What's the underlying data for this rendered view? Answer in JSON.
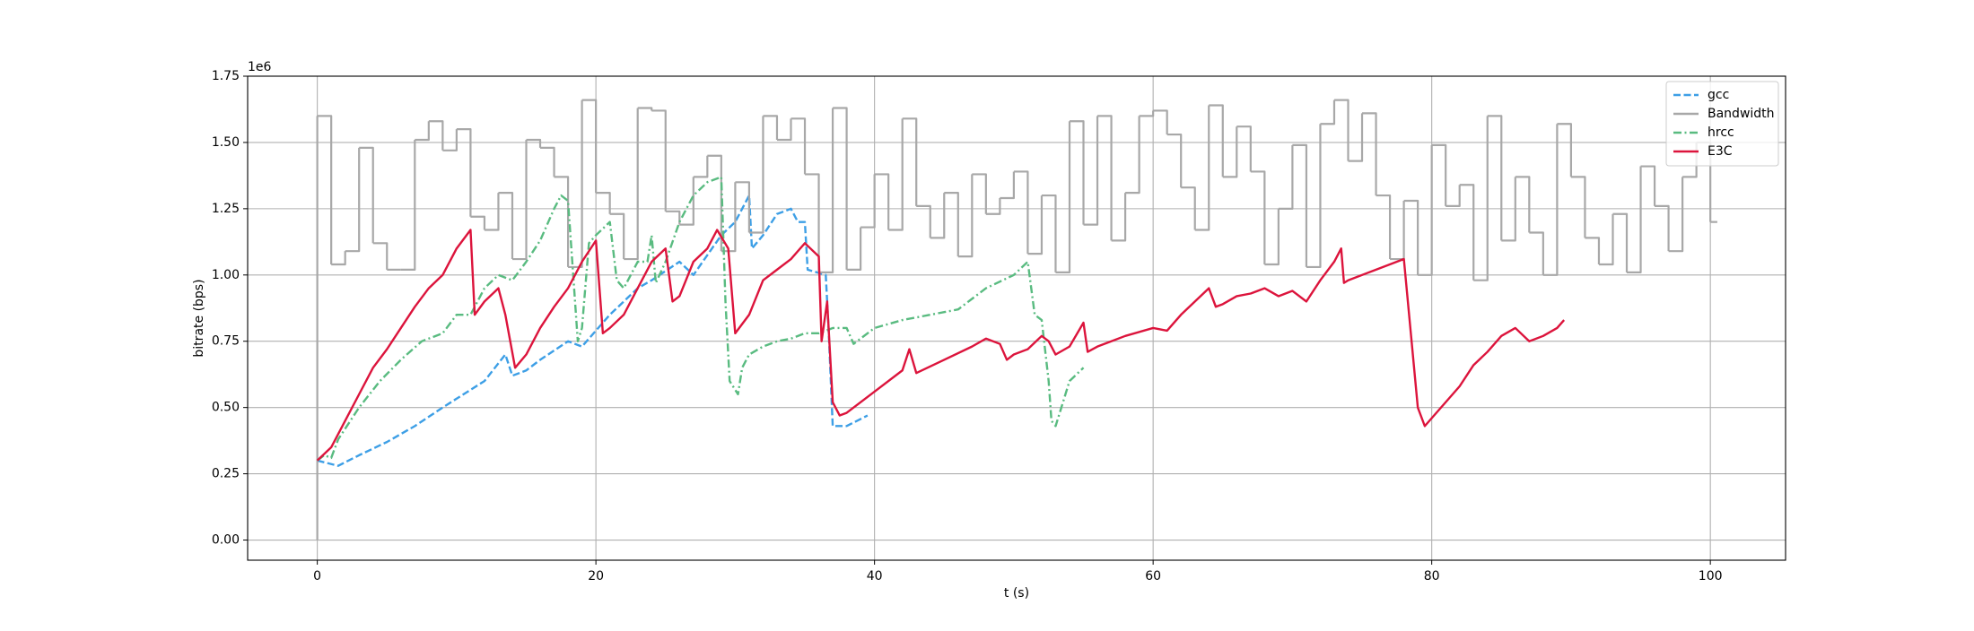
{
  "chart_data": {
    "type": "line",
    "xlabel": "t (s)",
    "ylabel": "bitrate (bps)",
    "y_offset_label": "1e6",
    "xlim": [
      -5,
      105.4
    ],
    "xticks": [
      0,
      20,
      40,
      60,
      80,
      100
    ],
    "ylim": [
      -76000,
      1750000
    ],
    "yticks": [
      {
        "value": 0,
        "label": "0.00"
      },
      {
        "value": 250000,
        "label": "0.25"
      },
      {
        "value": 500000,
        "label": "0.50"
      },
      {
        "value": 750000,
        "label": "0.75"
      },
      {
        "value": 1000000,
        "label": "1.00"
      },
      {
        "value": 1250000,
        "label": "1.25"
      },
      {
        "value": 1500000,
        "label": "1.50"
      },
      {
        "value": 1750000,
        "label": "1.75"
      }
    ],
    "grid": true,
    "legend": "upper right",
    "series": [
      {
        "name": "gcc",
        "color": "#3d9fe6",
        "dash": "dashed",
        "x": [
          0,
          1.5,
          3,
          5,
          7,
          9,
          10.5,
          12,
          13.5,
          14,
          15,
          16,
          18,
          19,
          21,
          23,
          24,
          26,
          27,
          29,
          30,
          31,
          31.2,
          32,
          33,
          34,
          34.5,
          35,
          35.2,
          36.5,
          36.7,
          37,
          38,
          39.5
        ],
        "values": [
          300000.0,
          280000.0,
          320000.0,
          370000.0,
          430000.0,
          500000.0,
          550000.0,
          600000.0,
          700000.0,
          620000.0,
          640000.0,
          680000.0,
          750000.0,
          730000.0,
          850000.0,
          950000.0,
          980000.0,
          1050000.0,
          1000000.0,
          1150000.0,
          1200000.0,
          1300000.0,
          1100000.0,
          1150000.0,
          1230000.0,
          1250000.0,
          1200000.0,
          1200000.0,
          1020000.0,
          1000000.0,
          800000.0,
          430000.0,
          430000.0,
          470000.0
        ]
      },
      {
        "name": "Bandwidth",
        "color": "#a8a8a8",
        "dash": "solid",
        "step": "post",
        "x": [
          0,
          0,
          1,
          2,
          3,
          4,
          5,
          6,
          7,
          8,
          9,
          10,
          11,
          12,
          13,
          14,
          15,
          16,
          17,
          18,
          19,
          20,
          21,
          22,
          23,
          24,
          25,
          26,
          27,
          28,
          29,
          30,
          31,
          32,
          33,
          34,
          35,
          36,
          37,
          38,
          39,
          40,
          41,
          42,
          43,
          44,
          45,
          46,
          47,
          48,
          49,
          50,
          51,
          52,
          53,
          54,
          55,
          56,
          57,
          58,
          59,
          60,
          61,
          62,
          63,
          64,
          65,
          66,
          67,
          68,
          69,
          70,
          71,
          72,
          73,
          74,
          75,
          76,
          77,
          78,
          79,
          80,
          81,
          82,
          83,
          84,
          85,
          86,
          87,
          88,
          89,
          90,
          91,
          92,
          93,
          94,
          95,
          96,
          97,
          98,
          99,
          100,
          100.5
        ],
        "values": [
          0,
          1600000.0,
          1040000.0,
          1090000.0,
          1480000.0,
          1120000.0,
          1020000.0,
          1020000.0,
          1510000.0,
          1580000.0,
          1470000.0,
          1550000.0,
          1220000.0,
          1170000.0,
          1310000.0,
          1060000.0,
          1510000.0,
          1480000.0,
          1370000.0,
          1030000.0,
          1660000.0,
          1310000.0,
          1230000.0,
          1060000.0,
          1630000.0,
          1620000.0,
          1240000.0,
          1190000.0,
          1370000.0,
          1450000.0,
          1090000.0,
          1350000.0,
          1160000.0,
          1600000.0,
          1510000.0,
          1590000.0,
          1380000.0,
          1010000.0,
          1630000.0,
          1020000.0,
          1180000.0,
          1380000.0,
          1170000.0,
          1590000.0,
          1260000.0,
          1140000.0,
          1310000.0,
          1070000.0,
          1380000.0,
          1230000.0,
          1290000.0,
          1390000.0,
          1080000.0,
          1300000.0,
          1010000.0,
          1580000.0,
          1190000.0,
          1600000.0,
          1130000.0,
          1310000.0,
          1600000.0,
          1620000.0,
          1530000.0,
          1330000.0,
          1170000.0,
          1640000.0,
          1370000.0,
          1560000.0,
          1390000.0,
          1040000.0,
          1250000.0,
          1490000.0,
          1030000.0,
          1570000.0,
          1660000.0,
          1430000.0,
          1610000.0,
          1300000.0,
          1060000.0,
          1280000.0,
          1000000.0,
          1490000.0,
          1260000.0,
          1340000.0,
          980000.0,
          1600000.0,
          1130000.0,
          1370000.0,
          1160000.0,
          1000000.0,
          1570000.0,
          1370000.0,
          1140000.0,
          1040000.0,
          1230000.0,
          1010000.0,
          1410000.0,
          1260000.0,
          1090000.0,
          1370000.0,
          1500000.0,
          1200000.0,
          1200000.0
        ]
      },
      {
        "name": "hrcc",
        "color": "#59bb80",
        "dash": "dashdot",
        "x": [
          0,
          0.5,
          1,
          1.5,
          3,
          4.5,
          6,
          7.5,
          9,
          10,
          11,
          12,
          13,
          14,
          15,
          16,
          17,
          17.5,
          18,
          18.7,
          19,
          19.5,
          20,
          21,
          21.5,
          22,
          23,
          23.7,
          24,
          24.3,
          25,
          26,
          27,
          28,
          29,
          29.3,
          29.6,
          30.2,
          30.5,
          31,
          32,
          33,
          34,
          35,
          36,
          37,
          38,
          38.5,
          40,
          42,
          44,
          46,
          48,
          50,
          51,
          51.5,
          52,
          52.5,
          52.7,
          53,
          54,
          55
        ],
        "values": [
          300000.0,
          320000.0,
          310000.0,
          380000.0,
          500000.0,
          600000.0,
          680000.0,
          750000.0,
          780000.0,
          850000.0,
          850000.0,
          950000.0,
          1000000.0,
          980000.0,
          1050000.0,
          1130000.0,
          1250000.0,
          1300000.0,
          1280000.0,
          750000.0,
          800000.0,
          1120000.0,
          1150000.0,
          1200000.0,
          980000.0,
          950000.0,
          1050000.0,
          1050000.0,
          1150000.0,
          970000.0,
          1050000.0,
          1200000.0,
          1300000.0,
          1350000.0,
          1370000.0,
          900000.0,
          600000.0,
          550000.0,
          650000.0,
          700000.0,
          730000.0,
          750000.0,
          760000.0,
          780000.0,
          780000.0,
          800000.0,
          800000.0,
          740000.0,
          800000.0,
          830000.0,
          850000.0,
          870000.0,
          950000.0,
          1000000.0,
          1050000.0,
          850000.0,
          830000.0,
          600000.0,
          450000.0,
          430000.0,
          600000.0,
          650000.0
        ]
      },
      {
        "name": "E3C",
        "color": "#dc143c",
        "dash": "solid",
        "x": [
          0,
          1,
          2,
          3,
          4,
          5,
          6,
          7,
          8,
          9,
          10,
          11,
          11.3,
          12,
          13,
          13.5,
          14.2,
          15,
          16,
          17,
          18,
          19,
          20,
          20.5,
          21,
          22,
          23,
          24,
          25,
          25.5,
          26,
          27,
          28,
          28.7,
          29.5,
          30,
          31,
          32,
          33,
          34,
          35,
          36,
          36.2,
          36.6,
          37,
          37.5,
          38,
          40,
          42,
          42.5,
          43,
          45,
          47,
          48,
          49,
          49.5,
          50,
          51,
          52,
          52.5,
          53,
          54,
          55,
          55.3,
          56,
          58,
          60,
          61,
          62,
          63,
          64,
          64.5,
          65,
          66,
          67,
          68,
          69,
          70,
          71,
          72,
          73,
          73.5,
          73.7,
          74,
          76,
          78,
          78.5,
          79,
          79.5,
          80,
          82,
          83,
          84,
          85,
          86,
          87,
          88,
          89,
          89.5
        ],
        "values": [
          300000.0,
          350000.0,
          450000.0,
          550000.0,
          650000.0,
          720000.0,
          800000.0,
          880000.0,
          950000.0,
          1000000.0,
          1100000.0,
          1170000.0,
          850000.0,
          900000.0,
          950000.0,
          850000.0,
          650000.0,
          700000.0,
          800000.0,
          880000.0,
          950000.0,
          1050000.0,
          1130000.0,
          780000.0,
          800000.0,
          850000.0,
          950000.0,
          1050000.0,
          1100000.0,
          900000.0,
          920000.0,
          1050000.0,
          1100000.0,
          1170000.0,
          1100000.0,
          780000.0,
          850000.0,
          980000.0,
          1020000.0,
          1060000.0,
          1120000.0,
          1070000.0,
          750000.0,
          900000.0,
          520000.0,
          470000.0,
          480000.0,
          560000.0,
          640000.0,
          720000.0,
          630000.0,
          680000.0,
          730000.0,
          760000.0,
          740000.0,
          680000.0,
          700000.0,
          720000.0,
          770000.0,
          750000.0,
          700000.0,
          730000.0,
          820000.0,
          710000.0,
          730000.0,
          770000.0,
          800000.0,
          790000.0,
          850000.0,
          900000.0,
          950000.0,
          880000.0,
          890000.0,
          920000.0,
          930000.0,
          950000.0,
          920000.0,
          940000.0,
          900000.0,
          980000.0,
          1050000.0,
          1100000.0,
          970000.0,
          980000.0,
          1020000.0,
          1060000.0,
          780000.0,
          500000.0,
          430000.0,
          460000.0,
          580000.0,
          660000.0,
          710000.0,
          770000.0,
          800000.0,
          750000.0,
          770000.0,
          800000.0,
          830000.0
        ]
      }
    ]
  }
}
